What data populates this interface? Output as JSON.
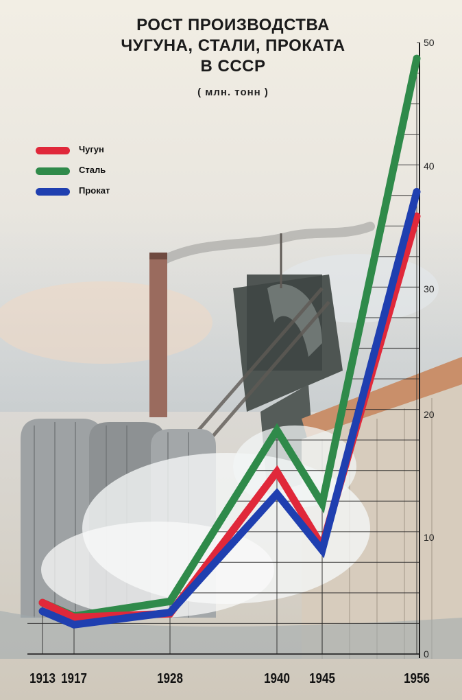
{
  "title": {
    "line1": "РОСТ ПРОИЗВОДСТВА",
    "line2": "ЧУГУНА, СТАЛИ, ПРОКАТА",
    "line3": "В СССР",
    "unit": "( млн. тонн )"
  },
  "chart_data": {
    "type": "line",
    "x": [
      1913,
      1917,
      1928,
      1940,
      1945,
      1956
    ],
    "series": [
      {
        "name": "Чугун",
        "color": "#e0283a",
        "values": [
          4.2,
          3.0,
          3.3,
          14.9,
          8.8,
          35.8
        ]
      },
      {
        "name": "Сталь",
        "color": "#2f8a4a",
        "values": [
          4.2,
          3.1,
          4.3,
          18.3,
          12.3,
          48.7
        ]
      },
      {
        "name": "Прокат",
        "color": "#1f3fb0",
        "values": [
          3.5,
          2.4,
          3.4,
          13.1,
          8.5,
          37.8
        ]
      }
    ],
    "x_tick_labels": [
      "1913",
      "1917",
      "1928",
      "1940",
      "1945",
      "1956"
    ],
    "y_tick_labels": [
      "0",
      "10",
      "20",
      "30",
      "40",
      "50"
    ],
    "ylim": [
      0,
      50
    ],
    "legend": [
      "Чугун",
      "Сталь",
      "Прокат"
    ],
    "legend_position": "top-left",
    "grid": true
  }
}
